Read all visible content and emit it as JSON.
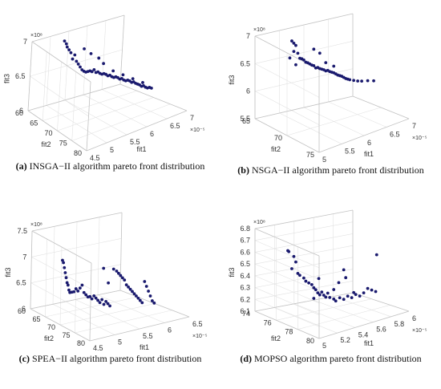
{
  "chart_data": [
    {
      "type": "scatter",
      "label": "(a)",
      "caption": "INSGA−II algorithm pareto front distribution",
      "xlabel": "fit1",
      "ylabel": "fit2",
      "zlabel": "fit3",
      "x_exp": "×10⁻⁵",
      "z_exp": "×10⁸",
      "xticks": [
        "4.5",
        "5",
        "5.5",
        "6",
        "6.5",
        "7"
      ],
      "yticks": [
        "60",
        "65",
        "70",
        "75",
        "80"
      ],
      "zticks": [
        "6",
        "6.5",
        "7"
      ],
      "points": [
        [
          7.25,
          0.05
        ],
        [
          7.2,
          0.07
        ],
        [
          7.15,
          0.08
        ],
        [
          7.1,
          0.1
        ],
        [
          7.05,
          0.12
        ],
        [
          6.95,
          0.14
        ],
        [
          7.0,
          0.16
        ],
        [
          6.9,
          0.18
        ],
        [
          6.85,
          0.2
        ],
        [
          6.8,
          0.22
        ],
        [
          6.75,
          0.24
        ],
        [
          6.72,
          0.26
        ],
        [
          6.7,
          0.28
        ],
        [
          6.7,
          0.3
        ],
        [
          6.7,
          0.32
        ],
        [
          6.68,
          0.34
        ],
        [
          6.7,
          0.36
        ],
        [
          6.65,
          0.38
        ],
        [
          6.65,
          0.4
        ],
        [
          6.62,
          0.42
        ],
        [
          6.6,
          0.44
        ],
        [
          6.6,
          0.46
        ],
        [
          6.58,
          0.48
        ],
        [
          6.55,
          0.5
        ],
        [
          6.55,
          0.52
        ],
        [
          6.52,
          0.54
        ],
        [
          6.5,
          0.56
        ],
        [
          6.5,
          0.58
        ],
        [
          6.48,
          0.6
        ],
        [
          6.45,
          0.62
        ],
        [
          6.45,
          0.64
        ],
        [
          6.42,
          0.66
        ],
        [
          6.4,
          0.68
        ],
        [
          6.4,
          0.7
        ],
        [
          6.38,
          0.72
        ],
        [
          6.35,
          0.74
        ],
        [
          6.35,
          0.76
        ],
        [
          6.32,
          0.78
        ],
        [
          6.3,
          0.8
        ],
        [
          6.28,
          0.82
        ],
        [
          6.25,
          0.84
        ],
        [
          6.25,
          0.86
        ],
        [
          6.22,
          0.88
        ],
        [
          6.2,
          0.9
        ],
        [
          6.2,
          0.92
        ],
        [
          6.18,
          0.94
        ],
        [
          7.05,
          0.25
        ],
        [
          6.95,
          0.32
        ],
        [
          6.85,
          0.4
        ],
        [
          6.75,
          0.45
        ],
        [
          6.6,
          0.55
        ],
        [
          6.5,
          0.65
        ],
        [
          6.4,
          0.75
        ],
        [
          6.3,
          0.85
        ]
      ]
    },
    {
      "type": "scatter",
      "label": "(b)",
      "caption": "NSGA−II algorithm pareto front distribution",
      "xlabel": "fit1",
      "ylabel": "fit2",
      "zlabel": "fit3",
      "x_exp": "×10⁻⁵",
      "z_exp": "×10⁸",
      "xticks": [
        "5",
        "5.5",
        "6",
        "6.5",
        "7"
      ],
      "yticks": [
        "65",
        "70",
        "75"
      ],
      "zticks": [
        "5.5",
        "6",
        "6.5",
        "7"
      ],
      "points": [
        [
          7.15,
          0.08
        ],
        [
          7.1,
          0.1
        ],
        [
          7.05,
          0.12
        ],
        [
          6.95,
          0.1
        ],
        [
          6.9,
          0.14
        ],
        [
          6.85,
          0.06
        ],
        [
          6.8,
          0.16
        ],
        [
          6.78,
          0.18
        ],
        [
          6.75,
          0.2
        ],
        [
          6.7,
          0.22
        ],
        [
          6.7,
          0.12
        ],
        [
          6.68,
          0.24
        ],
        [
          6.65,
          0.26
        ],
        [
          6.62,
          0.28
        ],
        [
          6.6,
          0.3
        ],
        [
          6.55,
          0.32
        ],
        [
          6.55,
          0.34
        ],
        [
          6.52,
          0.36
        ],
        [
          6.5,
          0.38
        ],
        [
          6.48,
          0.4
        ],
        [
          6.45,
          0.42
        ],
        [
          6.45,
          0.44
        ],
        [
          6.42,
          0.46
        ],
        [
          6.4,
          0.48
        ],
        [
          6.38,
          0.5
        ],
        [
          6.35,
          0.52
        ],
        [
          6.32,
          0.54
        ],
        [
          6.3,
          0.56
        ],
        [
          6.28,
          0.58
        ],
        [
          6.25,
          0.6
        ],
        [
          6.22,
          0.62
        ],
        [
          6.2,
          0.64
        ],
        [
          6.18,
          0.66
        ],
        [
          6.15,
          0.7
        ],
        [
          6.12,
          0.74
        ],
        [
          6.1,
          0.78
        ],
        [
          6.08,
          0.84
        ],
        [
          6.05,
          0.9
        ],
        [
          6.9,
          0.3
        ],
        [
          6.8,
          0.36
        ],
        [
          6.6,
          0.42
        ],
        [
          6.5,
          0.5
        ]
      ]
    },
    {
      "type": "scatter",
      "label": "(c)",
      "caption": "SPEA−II algorithm pareto front distribution",
      "xlabel": "fit1",
      "ylabel": "fit2",
      "zlabel": "fit3",
      "x_exp": "×10⁻⁵",
      "z_exp": "×10⁸",
      "xticks": [
        "4.5",
        "5",
        "5.5",
        "6",
        "6.5"
      ],
      "yticks": [
        "60",
        "65",
        "70",
        "75",
        "80"
      ],
      "zticks": [
        "6",
        "6.5",
        "7",
        "7.5"
      ],
      "points": [
        [
          7.2,
          0.04
        ],
        [
          7.15,
          0.05
        ],
        [
          7.05,
          0.06
        ],
        [
          6.95,
          0.07
        ],
        [
          6.85,
          0.08
        ],
        [
          6.75,
          0.09
        ],
        [
          6.7,
          0.1
        ],
        [
          6.6,
          0.11
        ],
        [
          6.55,
          0.12
        ],
        [
          6.55,
          0.14
        ],
        [
          6.55,
          0.16
        ],
        [
          6.6,
          0.18
        ],
        [
          6.55,
          0.2
        ],
        [
          6.6,
          0.22
        ],
        [
          6.65,
          0.24
        ],
        [
          6.5,
          0.26
        ],
        [
          6.45,
          0.28
        ],
        [
          6.4,
          0.3
        ],
        [
          6.4,
          0.32
        ],
        [
          6.35,
          0.34
        ],
        [
          6.4,
          0.36
        ],
        [
          6.35,
          0.38
        ],
        [
          6.3,
          0.4
        ],
        [
          6.25,
          0.42
        ],
        [
          6.3,
          0.44
        ],
        [
          6.2,
          0.46
        ],
        [
          6.25,
          0.48
        ],
        [
          6.2,
          0.5
        ],
        [
          6.15,
          0.52
        ],
        [
          6.85,
          0.55
        ],
        [
          6.8,
          0.58
        ],
        [
          6.75,
          0.6
        ],
        [
          6.7,
          0.62
        ],
        [
          6.65,
          0.64
        ],
        [
          6.6,
          0.66
        ],
        [
          6.5,
          0.68
        ],
        [
          6.45,
          0.7
        ],
        [
          6.4,
          0.72
        ],
        [
          6.35,
          0.74
        ],
        [
          6.3,
          0.76
        ],
        [
          6.25,
          0.78
        ],
        [
          6.2,
          0.8
        ],
        [
          6.15,
          0.82
        ],
        [
          6.1,
          0.84
        ],
        [
          6.5,
          0.86
        ],
        [
          6.4,
          0.88
        ],
        [
          6.3,
          0.9
        ],
        [
          6.2,
          0.92
        ],
        [
          6.1,
          0.94
        ],
        [
          6.05,
          0.96
        ],
        [
          6.9,
          0.45
        ],
        [
          6.6,
          0.5
        ]
      ]
    },
    {
      "type": "scatter",
      "label": "(d)",
      "caption": "MOPSO algorithm pareto front distribution",
      "xlabel": "fit1",
      "ylabel": "fit2",
      "zlabel": "fit3",
      "x_exp": "×10⁻⁵",
      "z_exp": "×10⁸",
      "xticks": [
        "5",
        "5.2",
        "5.4",
        "5.6",
        "5.8",
        "6"
      ],
      "yticks": [
        "74",
        "76",
        "78",
        "80"
      ],
      "zticks": [
        "6.1",
        "6.2",
        "6.3",
        "6.4",
        "6.5",
        "6.6",
        "6.7",
        "6.8"
      ],
      "points": [
        [
          6.71,
          0.04
        ],
        [
          6.7,
          0.05
        ],
        [
          6.65,
          0.1
        ],
        [
          6.6,
          0.12
        ],
        [
          6.55,
          0.08
        ],
        [
          6.5,
          0.14
        ],
        [
          6.48,
          0.16
        ],
        [
          6.45,
          0.2
        ],
        [
          6.42,
          0.22
        ],
        [
          6.4,
          0.25
        ],
        [
          6.38,
          0.28
        ],
        [
          6.35,
          0.3
        ],
        [
          6.33,
          0.32
        ],
        [
          6.3,
          0.34
        ],
        [
          6.28,
          0.36
        ],
        [
          6.3,
          0.38
        ],
        [
          6.27,
          0.4
        ],
        [
          6.25,
          0.42
        ],
        [
          6.28,
          0.44
        ],
        [
          6.24,
          0.46
        ],
        [
          6.22,
          0.5
        ],
        [
          6.2,
          0.52
        ],
        [
          6.22,
          0.56
        ],
        [
          6.2,
          0.6
        ],
        [
          6.22,
          0.64
        ],
        [
          6.2,
          0.68
        ],
        [
          6.22,
          0.72
        ],
        [
          6.2,
          0.76
        ],
        [
          6.22,
          0.8
        ],
        [
          6.25,
          0.84
        ],
        [
          6.23,
          0.88
        ],
        [
          6.21,
          0.92
        ],
        [
          6.52,
          0.93
        ],
        [
          6.45,
          0.6
        ],
        [
          6.35,
          0.55
        ],
        [
          6.3,
          0.5
        ],
        [
          6.26,
          0.3
        ],
        [
          6.42,
          0.35
        ],
        [
          6.38,
          0.62
        ],
        [
          6.24,
          0.7
        ]
      ]
    }
  ]
}
